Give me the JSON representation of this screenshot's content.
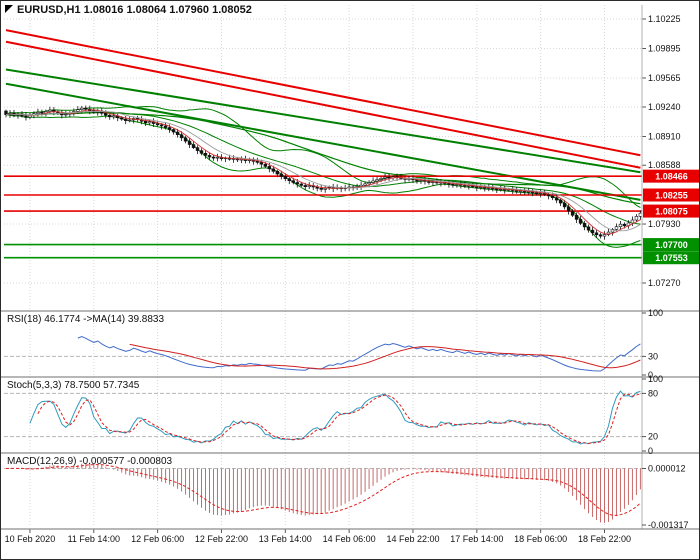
{
  "header": {
    "title_line": "EURUSD,H1 1.08016 1.08064 1.07960 1.08052"
  },
  "chart_data": {
    "type": "candlestick",
    "title": "EURUSD,H1",
    "symbol": "EURUSD",
    "timeframe": "H1",
    "last_bar_ohlc": {
      "open": "1.08016",
      "high": "1.08064",
      "low": "1.07960",
      "close": "1.08052"
    },
    "colors": {
      "grid": "#d8d8d8",
      "wick": "#111111",
      "bull": "#ffffff",
      "bear": "#111111",
      "bb": "#008000",
      "ma_fast": "#d03030",
      "ma_mid": "#9a9a9a",
      "ma_slow": "#008000",
      "trend_red": "#e80000",
      "trend_green": "#008000",
      "line_red": "#e80000",
      "line_green": "#009000",
      "rsi_main": "#3f6bc9",
      "rsi_signal": "#d02020",
      "stoch_main": "#2f9bbf",
      "stoch_signal": "#e02020",
      "macd_hist": "#c96a6a",
      "macd_signal": "#e02020"
    },
    "bars": {
      "interval": "1 hour",
      "closes": [
        1.09155,
        1.0917,
        1.09148,
        1.09162,
        1.0914,
        1.09128,
        1.0915,
        1.09165,
        1.0918,
        1.09172,
        1.0919,
        1.09205,
        1.09188,
        1.0917,
        1.09152,
        1.0916,
        1.09175,
        1.0919,
        1.0921,
        1.09228,
        1.09215,
        1.09198,
        1.09182,
        1.09195,
        1.0917,
        1.09148,
        1.0913,
        1.09142,
        1.0912,
        1.09105,
        1.09088,
        1.09095,
        1.09112,
        1.09098,
        1.0908,
        1.09062,
        1.09075,
        1.09055,
        1.0904,
        1.09028,
        1.0901,
        1.08988,
        1.0896,
        1.0893,
        1.08895,
        1.08858,
        1.0882,
        1.08785,
        1.08752,
        1.08722,
        1.08698,
        1.0868,
        1.08668,
        1.08678,
        1.08662,
        1.0867,
        1.08655,
        1.08662,
        1.08648,
        1.08655,
        1.0864,
        1.08648,
        1.08632,
        1.0862,
        1.086,
        1.08575,
        1.08548,
        1.0852,
        1.0849,
        1.08462,
        1.08438,
        1.08415,
        1.08395,
        1.08378,
        1.08362,
        1.08348,
        1.0836,
        1.08345,
        1.0833,
        1.08318,
        1.0833,
        1.08342,
        1.08328,
        1.08338,
        1.08325,
        1.08335,
        1.08345,
        1.08338,
        1.0835,
        1.08365,
        1.0838,
        1.08395,
        1.08412,
        1.08428,
        1.08442,
        1.08455,
        1.08448,
        1.0846,
        1.08452,
        1.0844,
        1.08428,
        1.08438,
        1.08425,
        1.08412,
        1.0842,
        1.08408,
        1.08395,
        1.08402,
        1.0839,
        1.08398,
        1.08385,
        1.08375,
        1.08368,
        1.08378,
        1.08365,
        1.08355,
        1.08362,
        1.08348,
        1.08338,
        1.08345,
        1.0833,
        1.08338,
        1.08325,
        1.08315,
        1.08322,
        1.0831,
        1.08318,
        1.08305,
        1.08295,
        1.08302,
        1.08288,
        1.08295,
        1.0828,
        1.0827,
        1.08278,
        1.08262,
        1.08245,
        1.08225,
        1.08198,
        1.08165,
        1.08122,
        1.08075,
        1.08028,
        1.07982,
        1.07938,
        1.07898,
        1.07862,
        1.07832,
        1.0781,
        1.07795,
        1.07812,
        1.0784,
        1.0787,
        1.079,
        1.07928,
        1.0791,
        1.07942,
        1.07975,
        1.08016,
        1.08052
      ]
    },
    "x_labels": [
      {
        "text": "10 Feb 2020",
        "bar": 6
      },
      {
        "text": "11 Feb 14:00",
        "bar": 22
      },
      {
        "text": "12 Feb 06:00",
        "bar": 38
      },
      {
        "text": "12 Feb 22:00",
        "bar": 54
      },
      {
        "text": "13 Feb 14:00",
        "bar": 70
      },
      {
        "text": "14 Feb 06:00",
        "bar": 86
      },
      {
        "text": "14 Feb 22:00",
        "bar": 102
      },
      {
        "text": "17 Feb 14:00",
        "bar": 118
      },
      {
        "text": "18 Feb 06:00",
        "bar": 134
      },
      {
        "text": "18 Feb 22:00",
        "bar": 150
      }
    ],
    "y_axis": {
      "ticks": [
        {
          "label": "1.10225",
          "price": 1.10225
        },
        {
          "label": "1.09895",
          "price": 1.09895
        },
        {
          "label": "1.09565",
          "price": 1.09565
        },
        {
          "label": "1.09240",
          "price": 1.0924
        },
        {
          "label": "1.08910",
          "price": 1.0891
        },
        {
          "label": "1.08588",
          "price": 1.08588
        },
        {
          "label": "1.07930",
          "price": 1.0793
        },
        {
          "label": "1.07270",
          "price": 1.0727
        }
      ]
    },
    "horizontal_lines": [
      {
        "label": "1.08466",
        "price": 1.08466,
        "color": "line_red"
      },
      {
        "label": "1.08255",
        "price": 1.08255,
        "color": "line_red"
      },
      {
        "label": "1.08075",
        "price": 1.08075,
        "color": "line_red"
      },
      {
        "label": "1.07700",
        "price": 1.077,
        "color": "line_green"
      },
      {
        "label": "1.07553",
        "price": 1.07553,
        "color": "line_green"
      }
    ],
    "trend_lines": [
      {
        "color": "trend_red",
        "from": {
          "bar": 0,
          "price": 1.101
        },
        "to": {
          "bar": 159,
          "price": 1.087
        }
      },
      {
        "color": "trend_red",
        "from": {
          "bar": 0,
          "price": 1.0997
        },
        "to": {
          "bar": 159,
          "price": 1.0856
        }
      },
      {
        "color": "trend_green",
        "from": {
          "bar": 0,
          "price": 1.0966
        },
        "to": {
          "bar": 159,
          "price": 1.0851
        }
      },
      {
        "color": "trend_green",
        "from": {
          "bar": 0,
          "price": 1.095
        },
        "to": {
          "bar": 159,
          "price": 1.082
        }
      }
    ],
    "overlays": {
      "bollinger_period": 20,
      "bollinger_dev": 2,
      "ma_fast": 5,
      "ma_mid": 10,
      "ma_slow": 50
    },
    "indicators": {
      "rsi": {
        "label": "RSI(18) 46.1774 ->MA(14) 39.8833",
        "period": 18,
        "ma_period": 14,
        "levels": [
          30
        ],
        "ticks": [
          {
            "label": "100",
            "value": 100
          },
          {
            "label": "30",
            "value": 30
          },
          {
            "label": "0",
            "value": 0
          }
        ]
      },
      "stoch": {
        "label": "Stoch(5,3,3) 78.7500 57.7345",
        "levels": [
          80,
          20
        ],
        "ticks": [
          {
            "label": "100",
            "value": 100
          },
          {
            "label": "80",
            "value": 80
          },
          {
            "label": "20",
            "value": 20
          },
          {
            "label": "0",
            "value": 0
          }
        ]
      },
      "macd": {
        "label": "MACD(12,26,9) -0.000577 -0.000803",
        "ticks": [
          {
            "label": "0.000012",
            "value": 1.2e-05
          },
          {
            "label": "-0.001317",
            "value": -0.001317
          }
        ]
      }
    }
  }
}
